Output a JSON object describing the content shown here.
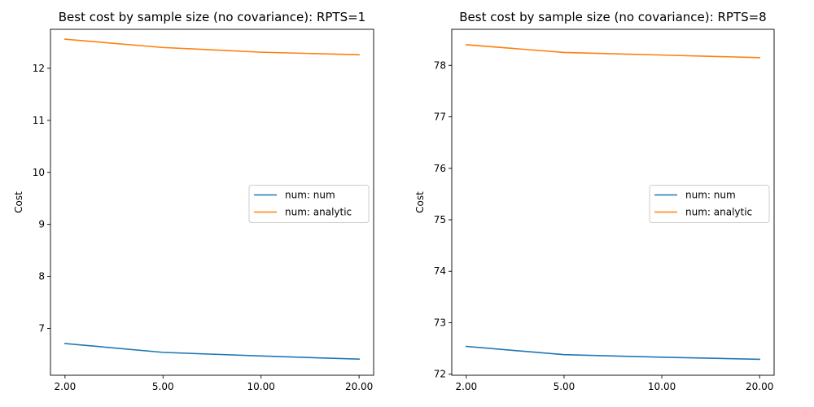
{
  "chart_data": [
    {
      "type": "line",
      "title": "Best cost by sample size (no covariance): RPTS=1",
      "xlabel": "",
      "ylabel": "Cost",
      "x": [
        "2.00",
        "5.00",
        "10.00",
        "20.00"
      ],
      "ylim": [
        6.1,
        12.75
      ],
      "yticks": [
        7,
        8,
        9,
        10,
        11,
        12
      ],
      "grid": false,
      "legend": "center-right",
      "series": [
        {
          "name": "num: num",
          "color": "#1f77b4",
          "values": [
            6.71,
            6.54,
            6.47,
            6.41
          ]
        },
        {
          "name": "num: analytic",
          "color": "#ff7f0e",
          "values": [
            12.56,
            12.4,
            12.31,
            12.26
          ]
        }
      ]
    },
    {
      "type": "line",
      "title": "Best cost by sample size (no covariance): RPTS=8",
      "xlabel": "",
      "ylabel": "Cost",
      "x": [
        "2.00",
        "5.00",
        "10.00",
        "20.00"
      ],
      "ylim": [
        71.98,
        78.7
      ],
      "yticks": [
        72,
        73,
        74,
        75,
        76,
        77,
        78
      ],
      "grid": false,
      "legend": "center-right",
      "series": [
        {
          "name": "num: num",
          "color": "#1f77b4",
          "values": [
            72.54,
            72.38,
            72.33,
            72.29
          ]
        },
        {
          "name": "num: analytic",
          "color": "#ff7f0e",
          "values": [
            78.4,
            78.25,
            78.2,
            78.15
          ]
        }
      ]
    }
  ]
}
